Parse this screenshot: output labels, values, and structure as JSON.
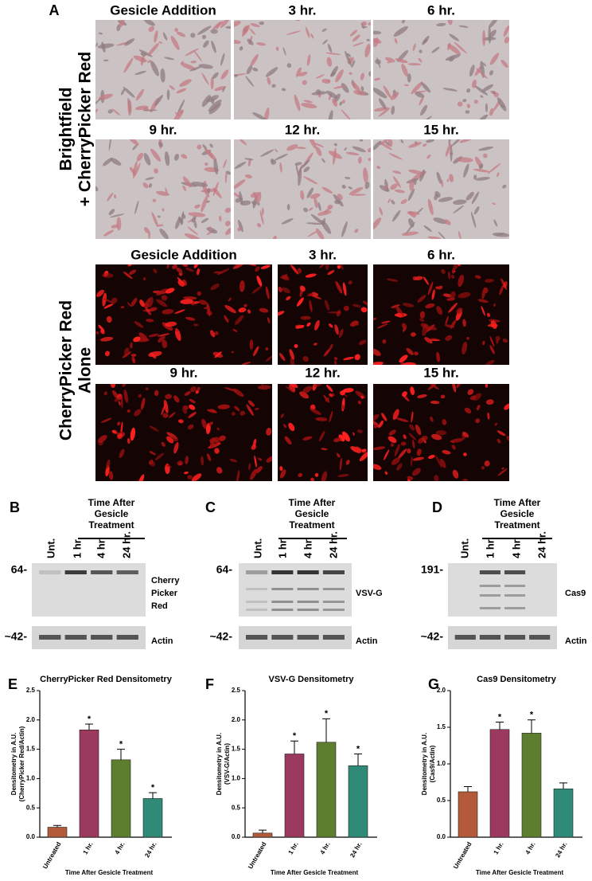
{
  "panel_a": {
    "label": "A",
    "brightfield": {
      "row_label": [
        "Brightfield",
        "+ CherryPicker Red"
      ],
      "timepoints": [
        "Gesicle Addition",
        "3 hr.",
        "6 hr.",
        "9 hr.",
        "12 hr.",
        "15 hr."
      ]
    },
    "fluorescence": {
      "row_label": [
        "CherryPicker Red",
        "Alone"
      ],
      "timepoints": [
        "Gesicle Addition",
        "3 hr.",
        "6 hr.",
        "9 hr.",
        "12 hr.",
        "15 hr."
      ]
    }
  },
  "blots": [
    {
      "label": "B",
      "header": [
        "Time After",
        "Gesicle",
        "Treatment"
      ],
      "lanes": [
        "Unt.",
        "1 hr.",
        "4 hr.",
        "24 hr."
      ],
      "marker": "64-",
      "loading_marker": "~42-",
      "protein": [
        "Cherry",
        "Picker",
        "Red"
      ],
      "loading": "Actin"
    },
    {
      "label": "C",
      "header": [
        "Time After",
        "Gesicle",
        "Treatment"
      ],
      "lanes": [
        "Unt.",
        "1 hr.",
        "4 hr.",
        "24 hr."
      ],
      "marker": "64-",
      "loading_marker": "~42-",
      "protein": [
        "VSV-G"
      ],
      "loading": "Actin"
    },
    {
      "label": "D",
      "header": [
        "Time After",
        "Gesicle",
        "Treatment"
      ],
      "lanes": [
        "Unt.",
        "1 hr.",
        "4 hr.",
        "24 hr."
      ],
      "marker": "191-",
      "loading_marker": "~42-",
      "protein": [
        "Cas9"
      ],
      "loading": "Actin"
    }
  ],
  "chart_data": [
    {
      "type": "bar",
      "label": "E",
      "title": "CherryPicker Red Densitometry",
      "ylabel": [
        "Densitometry in A.U.",
        "(CherryPicker Red/Actin)"
      ],
      "xlabel": "Time After Gesicle Treatment",
      "categories": [
        "Untreated",
        "1 hr.",
        "4 hr.",
        "24 hr."
      ],
      "values": [
        0.17,
        1.83,
        1.32,
        0.66
      ],
      "errors": [
        0.03,
        0.1,
        0.18,
        0.1
      ],
      "significance": [
        null,
        "*",
        "*",
        "*"
      ],
      "colors": [
        "#b35a3a",
        "#9b3a5e",
        "#5d7d2f",
        "#2f8a77"
      ],
      "ylim": [
        0,
        2.5
      ],
      "yticks": [
        {
          "value": 0,
          "label": "0.0"
        },
        0.5,
        {
          "value": 1,
          "label": "1.0"
        },
        1.5,
        {
          "value": 2,
          "label": "2.0"
        },
        2.5
      ]
    },
    {
      "type": "bar",
      "label": "F",
      "title": "VSV-G Densitometry",
      "ylabel": [
        "Densitometry in A.U.",
        "(VSV-G/Actin)"
      ],
      "xlabel": "Time After Gesicle Treatment",
      "categories": [
        "Untreated",
        "1 hr.",
        "4 hr.",
        "24 hr."
      ],
      "values": [
        0.07,
        1.42,
        1.62,
        1.22
      ],
      "errors": [
        0.05,
        0.22,
        0.4,
        0.2
      ],
      "significance": [
        null,
        "*",
        "*",
        "*"
      ],
      "colors": [
        "#b35a3a",
        "#9b3a5e",
        "#5d7d2f",
        "#2f8a77"
      ],
      "ylim": [
        0,
        2.5
      ],
      "yticks": [
        {
          "value": 0,
          "label": "0.0"
        },
        0.5,
        {
          "value": 1,
          "label": "1.0"
        },
        1.5,
        {
          "value": 2,
          "label": "2.0"
        },
        2.5
      ]
    },
    {
      "type": "bar",
      "label": "G",
      "title": "Cas9 Densitometry",
      "ylabel": [
        "Densitometry in A.U.",
        "(Cas9/Actin)"
      ],
      "xlabel": "Time After Gesicle Treatment",
      "categories": [
        "Untreated",
        "1 hr.",
        "4 hr.",
        "24 hr."
      ],
      "values": [
        0.62,
        1.47,
        1.42,
        0.66
      ],
      "errors": [
        0.07,
        0.1,
        0.18,
        0.08
      ],
      "significance": [
        null,
        "*",
        "*",
        null
      ],
      "colors": [
        "#b35a3a",
        "#9b3a5e",
        "#5d7d2f",
        "#2f8a77"
      ],
      "ylim": [
        0,
        2
      ],
      "yticks": [
        {
          "value": 0,
          "label": "0.0"
        },
        0.5,
        {
          "value": 1,
          "label": "1.0"
        },
        1.5,
        {
          "value": 2,
          "label": "2.0"
        }
      ]
    }
  ]
}
